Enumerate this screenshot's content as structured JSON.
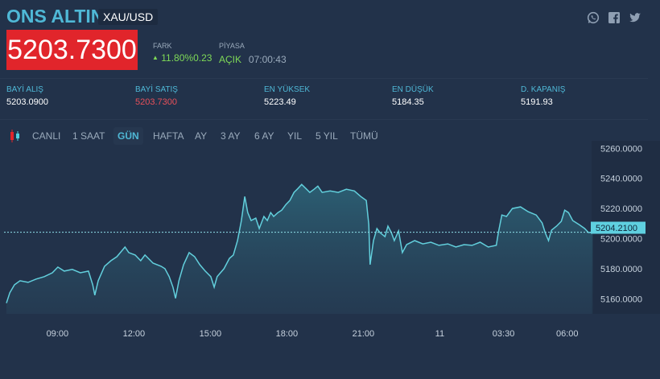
{
  "header": {
    "title": "ONS ALTIN",
    "pair": "XAU/USD",
    "price": "5203.7300",
    "change_label": "FARK",
    "change_value": "11.80%0.23",
    "change_direction": "up",
    "market_label": "PİYASA",
    "market_status": "AÇIK",
    "market_time": "07:00:43",
    "social_icons": [
      "whatsapp-icon",
      "facebook-icon",
      "twitter-icon"
    ]
  },
  "stats": [
    {
      "label": "BAYİ ALIŞ",
      "value": "5203.0900"
    },
    {
      "label": "BAYİ SATIŞ",
      "value": "5203.7300",
      "color": "#e8505a"
    },
    {
      "label": "EN YÜKSEK",
      "value": "5223.49"
    },
    {
      "label": "EN DÜŞÜK",
      "value": "5184.35"
    },
    {
      "label": "D. KAPANIŞ",
      "value": "5191.93"
    }
  ],
  "tabs": [
    {
      "label": "CANLI"
    },
    {
      "label": "1 SAAT"
    },
    {
      "label": "GÜN",
      "active": true
    },
    {
      "label": "HAFTA"
    },
    {
      "label": "AY"
    },
    {
      "label": "3 AY"
    },
    {
      "label": "6 AY"
    },
    {
      "label": "YIL"
    },
    {
      "label": "5 YIL"
    },
    {
      "label": "TÜMÜ"
    }
  ],
  "colors": {
    "accent": "#4fb8d6",
    "price_box": "#e1252b",
    "line": "#62cfdc",
    "up": "#7ed957",
    "background": "#22324a"
  },
  "chart_data": {
    "type": "area",
    "ylim": [
      5150,
      5265
    ],
    "y_ticks": [
      "5260.0000",
      "5240.0000",
      "5220.0000",
      "5200.0000",
      "5180.0000",
      "5160.0000"
    ],
    "x_ticks": [
      {
        "label": "09:00",
        "t": "10 09:00"
      },
      {
        "label": "12:00",
        "t": "10 12:00"
      },
      {
        "label": "15:00",
        "t": "10 15:00"
      },
      {
        "label": "18:00",
        "t": "10 18:00"
      },
      {
        "label": "21:00",
        "t": "10 21:00"
      },
      {
        "label": "11",
        "t": "11 00:00"
      },
      {
        "label": "03:30",
        "t": "11 03:30"
      },
      {
        "label": "06:00",
        "t": "11 06:00"
      }
    ],
    "current_price": "5204.2100",
    "grid": false,
    "points": [
      [
        "10 07:00",
        5157.1
      ],
      [
        "10 07:08",
        5164.0
      ],
      [
        "10 07:19",
        5169.3
      ],
      [
        "10 07:32",
        5172.0
      ],
      [
        "10 07:51",
        5170.9
      ],
      [
        "10 08:10",
        5173.1
      ],
      [
        "10 08:29",
        5174.7
      ],
      [
        "10 08:48",
        5177.3
      ],
      [
        "10 09:01",
        5181.1
      ],
      [
        "10 09:16",
        5178.4
      ],
      [
        "10 09:35",
        5179.5
      ],
      [
        "10 09:54",
        5177.3
      ],
      [
        "10 10:13",
        5178.4
      ],
      [
        "10 10:23",
        5169.3
      ],
      [
        "10 10:28",
        5162.4
      ],
      [
        "10 10:36",
        5172.0
      ],
      [
        "10 10:51",
        5181.6
      ],
      [
        "10 11:06",
        5185.3
      ],
      [
        "10 11:20",
        5188.0
      ],
      [
        "10 11:39",
        5194.4
      ],
      [
        "10 11:48",
        5190.7
      ],
      [
        "10 12:03",
        5189.1
      ],
      [
        "10 12:16",
        5185.3
      ],
      [
        "10 12:26",
        5189.1
      ],
      [
        "10 12:45",
        5183.7
      ],
      [
        "10 13:04",
        5181.6
      ],
      [
        "10 13:13",
        5180.0
      ],
      [
        "10 13:23",
        5174.7
      ],
      [
        "10 13:32",
        5167.7
      ],
      [
        "10 13:38",
        5160.3
      ],
      [
        "10 13:46",
        5172.0
      ],
      [
        "10 13:57",
        5182.7
      ],
      [
        "10 14:10",
        5190.7
      ],
      [
        "10 14:23",
        5188.0
      ],
      [
        "10 14:35",
        5182.7
      ],
      [
        "10 14:48",
        5178.4
      ],
      [
        "10 15:01",
        5174.7
      ],
      [
        "10 15:09",
        5167.7
      ],
      [
        "10 15:16",
        5174.7
      ],
      [
        "10 15:32",
        5180.0
      ],
      [
        "10 15:45",
        5186.9
      ],
      [
        "10 15:54",
        5189.1
      ],
      [
        "10 16:04",
        5198.7
      ],
      [
        "10 16:13",
        5212.0
      ],
      [
        "10 16:21",
        5228.0
      ],
      [
        "10 16:28",
        5217.3
      ],
      [
        "10 16:36",
        5212.0
      ],
      [
        "10 16:47",
        5213.6
      ],
      [
        "10 16:55",
        5206.7
      ],
      [
        "10 17:06",
        5214.7
      ],
      [
        "10 17:14",
        5212.0
      ],
      [
        "10 17:22",
        5217.3
      ],
      [
        "10 17:29",
        5214.7
      ],
      [
        "10 17:39",
        5217.3
      ],
      [
        "10 17:48",
        5218.9
      ],
      [
        "10 17:58",
        5222.7
      ],
      [
        "10 18:07",
        5225.3
      ],
      [
        "10 18:17",
        5230.7
      ],
      [
        "10 18:26",
        5233.3
      ],
      [
        "10 18:35",
        5236.0
      ],
      [
        "10 18:45",
        5233.3
      ],
      [
        "10 18:54",
        5230.7
      ],
      [
        "10 19:04",
        5232.8
      ],
      [
        "10 19:13",
        5234.9
      ],
      [
        "10 19:23",
        5230.7
      ],
      [
        "10 19:42",
        5231.7
      ],
      [
        "10 20:01",
        5230.7
      ],
      [
        "10 20:20",
        5232.8
      ],
      [
        "10 20:39",
        5231.7
      ],
      [
        "10 20:54",
        5228.0
      ],
      [
        "10 21:07",
        5225.3
      ],
      [
        "10 21:13",
        5209.3
      ],
      [
        "10 21:16",
        5182.7
      ],
      [
        "10 21:24",
        5198.7
      ],
      [
        "10 21:32",
        5206.7
      ],
      [
        "10 21:39",
        5204.0
      ],
      [
        "10 21:51",
        5201.3
      ],
      [
        "10 21:58",
        5208.3
      ],
      [
        "10 22:06",
        5204.0
      ],
      [
        "10 22:13",
        5198.7
      ],
      [
        "10 22:23",
        5205.1
      ],
      [
        "10 22:32",
        5190.7
      ],
      [
        "10 22:42",
        5196.0
      ],
      [
        "10 23:01",
        5198.7
      ],
      [
        "10 23:20",
        5196.5
      ],
      [
        "10 23:39",
        5197.6
      ],
      [
        "10 23:58",
        5195.5
      ],
      [
        "11 01:19",
        5196.5
      ],
      [
        "11 01:38",
        5194.4
      ],
      [
        "11 01:57",
        5196.0
      ],
      [
        "11 02:16",
        5195.5
      ],
      [
        "11 02:35",
        5197.6
      ],
      [
        "11 02:54",
        5194.4
      ],
      [
        "11 03:13",
        5195.5
      ],
      [
        "11 03:18",
        5204.0
      ],
      [
        "11 03:26",
        5215.7
      ],
      [
        "11 03:37",
        5214.7
      ],
      [
        "11 03:51",
        5220.0
      ],
      [
        "11 04:10",
        5221.1
      ],
      [
        "11 04:28",
        5217.9
      ],
      [
        "11 04:47",
        5215.7
      ],
      [
        "11 05:01",
        5210.4
      ],
      [
        "11 05:08",
        5204.0
      ],
      [
        "11 05:16",
        5198.7
      ],
      [
        "11 05:23",
        5205.6
      ],
      [
        "11 05:35",
        5208.3
      ],
      [
        "11 05:46",
        5211.5
      ],
      [
        "11 05:54",
        5218.9
      ],
      [
        "11 06:03",
        5217.3
      ],
      [
        "11 06:13",
        5212.0
      ],
      [
        "11 06:28",
        5209.3
      ],
      [
        "11 06:41",
        5206.7
      ],
      [
        "11 06:50",
        5204.0
      ],
      [
        "11 07:00",
        5204.2
      ]
    ]
  }
}
